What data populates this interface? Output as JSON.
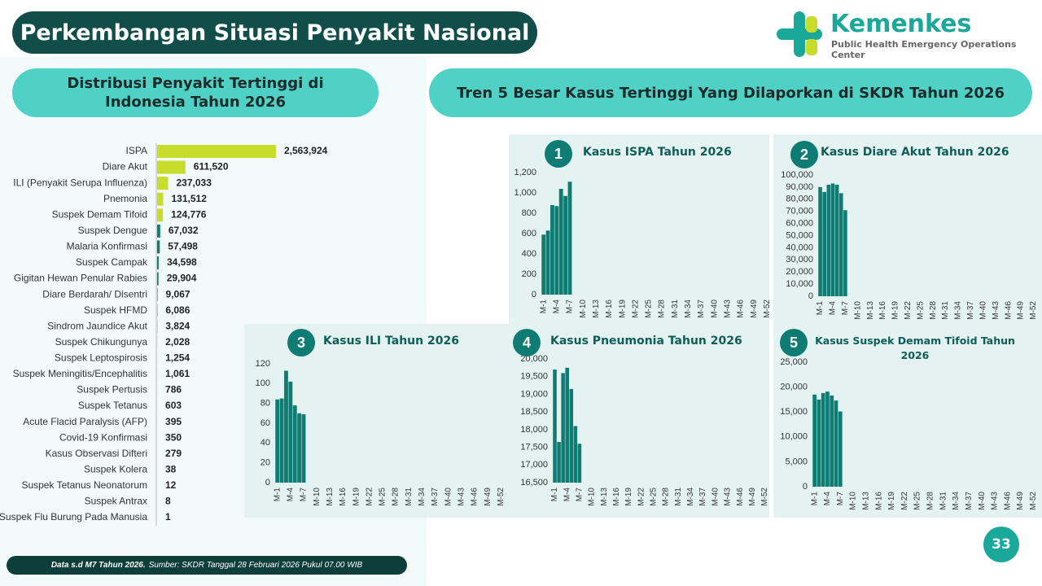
{
  "header": {
    "title": "Perkembangan Situasi Penyakit Nasional",
    "logo_name": "Kemenkes",
    "logo_subtitle": "Public Health Emergency Operations Center"
  },
  "left_heading": "Distribusi Penyakit Tertinggi di Indonesia Tahun 2026",
  "right_heading": "Tren 5 Besar Kasus Tertinggi Yang Dilaporkan di SKDR Tahun 2026",
  "footer": {
    "lead": "Data s.d M7 Tahun 2026.",
    "source": "Sumber: SKDR Tanggal 28 Februari 2026 Pukul 07.00 WIB"
  },
  "page_number": "33",
  "chart_data": [
    {
      "type": "barh",
      "categories": [
        "ISPA",
        "Diare Akut",
        "ILI (Penyakit Serupa Influenza)",
        "Pnemonia",
        "Suspek Demam Tifoid",
        "Suspek Dengue",
        "Malaria Konfirmasi",
        "Suspek Campak",
        "Gigitan Hewan Penular Rabies",
        "Diare Berdarah/ Disentri",
        "Suspek HFMD",
        "Sindrom Jaundice Akut",
        "Suspek Chikungunya",
        "Suspek Leptospirosis",
        "Suspek Meningitis/Encephalitis",
        "Suspek Pertusis",
        "Suspek Tetanus",
        "Acute Flacid Paralysis (AFP)",
        "Covid-19 Konfirmasi",
        "Kasus Observasi Difteri",
        "Suspek Kolera",
        "Suspek Tetanus Neonatorum",
        "Suspek Antrax",
        "Suspek Flu Burung Pada Manusia"
      ],
      "values": [
        2563924,
        611520,
        237033,
        131512,
        124776,
        67032,
        57498,
        34598,
        29904,
        9067,
        6086,
        3824,
        2028,
        1254,
        1061,
        786,
        603,
        395,
        350,
        279,
        38,
        12,
        8,
        1
      ],
      "value_labels": [
        "2,563,924",
        "611,520",
        "237,033",
        "131,512",
        "124,776",
        "67,032",
        "57,498",
        "34,598",
        "29,904",
        "9,067",
        "6,086",
        "3,824",
        "2,028",
        "1,254",
        "1,061",
        "786",
        "603",
        "395",
        "350",
        "279",
        "38",
        "12",
        "8",
        "1"
      ],
      "colors": [
        "#c8dc2c",
        "#c8dc2c",
        "#c8dc2c",
        "#c8dc2c",
        "#c8dc2c",
        "#0e7c72",
        "#0e7c72",
        "#0e7c72",
        "#0e7c72",
        "#0e7c72",
        "#0e7c72",
        "#0e7c72",
        "#0e7c72",
        "#0e7c72",
        "#0e7c72",
        "#0e7c72",
        "#0e7c72",
        "#0e7c72",
        "#0e7c72",
        "#0e7c72",
        "#0e7c72",
        "#0e7c72",
        "#0e7c72",
        "#0e7c72"
      ],
      "xlim": [
        0,
        2600000
      ]
    },
    {
      "type": "bar",
      "badge": "1",
      "title": "Kasus ISPA Tahun 2026",
      "color": "#0e7c72",
      "categories": [
        "M-1",
        null,
        null,
        "M-4",
        null,
        null,
        "M-7",
        null,
        null,
        "M-10",
        null,
        null,
        "M-13",
        null,
        null,
        "M-16",
        null,
        null,
        "M-19",
        null,
        null,
        "M-22",
        null,
        null,
        "M-25",
        null,
        null,
        "M-28",
        null,
        null,
        "M-31",
        null,
        null,
        "M-34",
        null,
        null,
        "M-37",
        null,
        null,
        "M-40",
        null,
        null,
        "M-43",
        null,
        null,
        "M-46",
        null,
        null,
        "M-49",
        null,
        null,
        "M-52"
      ],
      "values": [
        590,
        630,
        880,
        870,
        1040,
        970,
        1110,
        null,
        null,
        null,
        null,
        null,
        null,
        null,
        null,
        null,
        null,
        null,
        null,
        null,
        null,
        null,
        null,
        null,
        null,
        null,
        null,
        null,
        null,
        null,
        null,
        null,
        null,
        null,
        null,
        null,
        null,
        null,
        null,
        null,
        null,
        null,
        null,
        null,
        null,
        null,
        null,
        null,
        null,
        null,
        null,
        null
      ],
      "ylim": [
        0,
        1200
      ],
      "yticks": [
        0,
        200,
        400,
        600,
        800,
        {
          "value": 1000,
          "label": "1,000"
        },
        {
          "value": 1200,
          "label": "1,200"
        }
      ]
    },
    {
      "type": "bar",
      "badge": "2",
      "title": "Kasus Diare Akut Tahun 2026",
      "color": "#0e7c72",
      "categories": [
        "M-1",
        null,
        null,
        "M-4",
        null,
        null,
        "M-7",
        null,
        null,
        "M-10",
        null,
        null,
        "M-13",
        null,
        null,
        "M-16",
        null,
        null,
        "M-19",
        null,
        null,
        "M-22",
        null,
        null,
        "M-25",
        null,
        null,
        "M-28",
        null,
        null,
        "M-31",
        null,
        null,
        "M-34",
        null,
        null,
        "M-37",
        null,
        null,
        "M-40",
        null,
        null,
        "M-43",
        null,
        null,
        "M-46",
        null,
        null,
        "M-49",
        null,
        null,
        "M-52"
      ],
      "values": [
        90000,
        86000,
        92000,
        93000,
        92000,
        85000,
        71000,
        null,
        null,
        null,
        null,
        null,
        null,
        null,
        null,
        null,
        null,
        null,
        null,
        null,
        null,
        null,
        null,
        null,
        null,
        null,
        null,
        null,
        null,
        null,
        null,
        null,
        null,
        null,
        null,
        null,
        null,
        null,
        null,
        null,
        null,
        null,
        null,
        null,
        null,
        null,
        null,
        null,
        null,
        null,
        null,
        null
      ],
      "ylim": [
        0,
        100000
      ],
      "yticks": [
        0,
        {
          "value": 10000,
          "label": "10,000"
        },
        {
          "value": 20000,
          "label": "20,000"
        },
        {
          "value": 30000,
          "label": "30,000"
        },
        {
          "value": 40000,
          "label": "40,000"
        },
        {
          "value": 50000,
          "label": "50,000"
        },
        {
          "value": 60000,
          "label": "60,000"
        },
        {
          "value": 70000,
          "label": "70,000"
        },
        {
          "value": 80000,
          "label": "80,000"
        },
        {
          "value": 90000,
          "label": "90,000"
        },
        {
          "value": 100000,
          "label": "100,000"
        }
      ]
    },
    {
      "type": "bar",
      "badge": "3",
      "title": "Kasus ILI Tahun 2026",
      "color": "#0e7c72",
      "categories": [
        "M-1",
        null,
        null,
        "M-4",
        null,
        null,
        "M-7",
        null,
        null,
        "M-10",
        null,
        null,
        "M-13",
        null,
        null,
        "M-16",
        null,
        null,
        "M-19",
        null,
        null,
        "M-22",
        null,
        null,
        "M-25",
        null,
        null,
        "M-28",
        null,
        null,
        "M-31",
        null,
        null,
        "M-34",
        null,
        null,
        "M-37",
        null,
        null,
        "M-40",
        null,
        null,
        "M-43",
        null,
        null,
        "M-46",
        null,
        null,
        "M-49",
        null,
        null,
        "M-52"
      ],
      "values": [
        84,
        85,
        113,
        102,
        78,
        70,
        69,
        null,
        null,
        null,
        null,
        null,
        null,
        null,
        null,
        null,
        null,
        null,
        null,
        null,
        null,
        null,
        null,
        null,
        null,
        null,
        null,
        null,
        null,
        null,
        null,
        null,
        null,
        null,
        null,
        null,
        null,
        null,
        null,
        null,
        null,
        null,
        null,
        null,
        null,
        null,
        null,
        null,
        null,
        null,
        null,
        null
      ],
      "ylim": [
        0,
        120
      ],
      "yticks": [
        0,
        20,
        40,
        60,
        80,
        100,
        120
      ]
    },
    {
      "type": "bar",
      "badge": "4",
      "title": "Kasus Pneumonia Tahun 2026",
      "color": "#0e7c72",
      "categories": [
        "M-1",
        null,
        null,
        "M-4",
        null,
        null,
        "M-7",
        null,
        null,
        "M-10",
        null,
        null,
        "M-13",
        null,
        null,
        "M-16",
        null,
        null,
        "M-19",
        null,
        null,
        "M-22",
        null,
        null,
        "M-25",
        null,
        null,
        "M-28",
        null,
        null,
        "M-31",
        null,
        null,
        "M-34",
        null,
        null,
        "M-37",
        null,
        null,
        "M-40",
        null,
        null,
        "M-43",
        null,
        null,
        "M-46",
        null,
        null,
        "M-49",
        null,
        null,
        "M-52"
      ],
      "values": [
        19700,
        17650,
        19600,
        19750,
        19150,
        18100,
        17600,
        null,
        null,
        null,
        null,
        null,
        null,
        null,
        null,
        null,
        null,
        null,
        null,
        null,
        null,
        null,
        null,
        null,
        null,
        null,
        null,
        null,
        null,
        null,
        null,
        null,
        null,
        null,
        null,
        null,
        null,
        null,
        null,
        null,
        null,
        null,
        null,
        null,
        null,
        null,
        null,
        null,
        null,
        null,
        null,
        null
      ],
      "ylim": [
        16500,
        20000
      ],
      "yticks": [
        {
          "value": 16500,
          "label": "16,500"
        },
        {
          "value": 17000,
          "label": "17,000"
        },
        {
          "value": 17500,
          "label": "17,500"
        },
        {
          "value": 18000,
          "label": "18,000"
        },
        {
          "value": 18500,
          "label": "18,500"
        },
        {
          "value": 19000,
          "label": "19,000"
        },
        {
          "value": 19500,
          "label": "19,500"
        },
        {
          "value": 20000,
          "label": "20,000"
        }
      ]
    },
    {
      "type": "bar",
      "badge": "5",
      "title": "Kasus Suspek Demam Tifoid Tahun 2026",
      "color": "#0e7c72",
      "categories": [
        "M-1",
        null,
        null,
        "M-4",
        null,
        null,
        "M-7",
        null,
        null,
        "M-10",
        null,
        null,
        "M-13",
        null,
        null,
        "M-16",
        null,
        null,
        "M-19",
        null,
        null,
        "M-22",
        null,
        null,
        "M-25",
        null,
        null,
        "M-28",
        null,
        null,
        "M-31",
        null,
        null,
        "M-34",
        null,
        null,
        "M-37",
        null,
        null,
        "M-40",
        null,
        null,
        "M-43",
        null,
        null,
        "M-46",
        null,
        null,
        "M-49",
        null,
        null,
        "M-52"
      ],
      "values": [
        18500,
        17500,
        18800,
        19100,
        18300,
        17300,
        15100,
        null,
        null,
        null,
        null,
        null,
        null,
        null,
        null,
        null,
        null,
        null,
        null,
        null,
        null,
        null,
        null,
        null,
        null,
        null,
        null,
        null,
        null,
        null,
        null,
        null,
        null,
        null,
        null,
        null,
        null,
        null,
        null,
        null,
        null,
        null,
        null,
        null,
        null,
        null,
        null,
        null,
        null,
        null,
        null,
        null
      ],
      "ylim": [
        0,
        25000
      ],
      "yticks": [
        0,
        {
          "value": 5000,
          "label": "5,000"
        },
        {
          "value": 10000,
          "label": "10,000"
        },
        {
          "value": 15000,
          "label": "15,000"
        },
        {
          "value": 20000,
          "label": "20,000"
        },
        {
          "value": 25000,
          "label": "25,000"
        }
      ]
    }
  ]
}
